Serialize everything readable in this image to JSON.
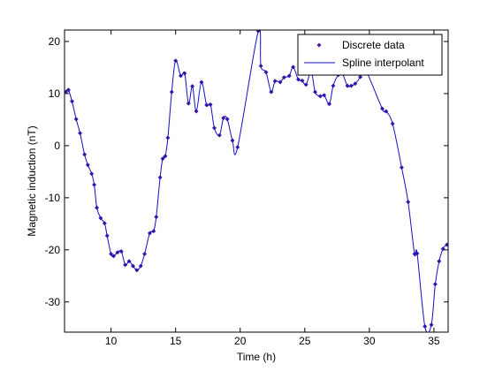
{
  "chart_data": {
    "type": "line",
    "xlabel": "Time (h)",
    "ylabel": "Magnetic induction (nT)",
    "xlim": [
      6.4,
      36.1
    ],
    "ylim": [
      -35.8,
      22.2
    ],
    "xticks": [
      10,
      15,
      20,
      25,
      30,
      35
    ],
    "yticks": [
      -30,
      -20,
      -10,
      0,
      10,
      20
    ],
    "legend": "upper right",
    "x": [
      6.5,
      6.7,
      6.98,
      7.3,
      7.6,
      7.95,
      8.2,
      8.5,
      8.7,
      8.9,
      9.2,
      9.5,
      9.7,
      10.0,
      10.2,
      10.5,
      10.8,
      11.1,
      11.4,
      11.7,
      12.0,
      12.3,
      12.6,
      13.0,
      13.3,
      13.5,
      13.8,
      14.0,
      14.2,
      14.4,
      14.7,
      15.0,
      15.4,
      15.7,
      16.0,
      16.3,
      16.6,
      17.0,
      17.4,
      17.7,
      18.0,
      18.4,
      18.7,
      19.0,
      19.4,
      19.8,
      21.4,
      21.6,
      22.0,
      22.4,
      22.7,
      23.1,
      23.4,
      23.8,
      24.1,
      24.5,
      24.8,
      25.1,
      25.5,
      25.8,
      26.2,
      26.5,
      26.9,
      27.2,
      27.6,
      27.9,
      28.3,
      28.6,
      28.9,
      29.3,
      29.6,
      31.0,
      31.3,
      31.8,
      32.5,
      33.0,
      33.5,
      33.7,
      34.3,
      34.8,
      35.1,
      35.4,
      35.7,
      36.0
    ],
    "series": [
      {
        "name": "Discrete data",
        "color": "#4b1a9a",
        "marker": true,
        "values": [
          10.3,
          10.7,
          8.5,
          5.1,
          2.4,
          -1.7,
          -3.7,
          -5.4,
          -7.5,
          -11.9,
          -13.9,
          -14.9,
          -17.3,
          -20.8,
          -21.2,
          -20.5,
          -20.3,
          -22.9,
          -22.2,
          -23.1,
          -23.9,
          -23.1,
          -20.8,
          -16.8,
          -16.4,
          -13.7,
          -6.1,
          -2.5,
          -2.0,
          1.5,
          10.3,
          16.3,
          13.4,
          13.9,
          8.1,
          11.4,
          6.6,
          12.2,
          7.8,
          7.9,
          3.4,
          2.0,
          5.3,
          5.1,
          1.0,
          -0.3,
          22.0,
          15.3,
          14.1,
          10.3,
          12.4,
          12.2,
          13.1,
          13.4,
          15.1,
          12.7,
          12.5,
          11.7,
          14.2,
          10.3,
          9.5,
          9.7,
          8.0,
          11.5,
          13.6,
          13.9,
          11.5,
          11.5,
          11.9,
          13.2,
          15.1,
          7.1,
          6.6,
          4.2,
          -4.2,
          -10.8,
          -20.8,
          -20.7,
          -34.7,
          -34.4,
          -26.6,
          -22.2,
          -19.8,
          -19.0
        ]
      },
      {
        "name": "Spline interpolant",
        "color": "#1010c8",
        "marker": false,
        "values": [
          10.3,
          10.7,
          8.5,
          5.1,
          2.4,
          -1.7,
          -3.7,
          -5.4,
          -7.5,
          -11.9,
          -13.9,
          -14.9,
          -17.3,
          -20.8,
          -21.2,
          -20.5,
          -20.3,
          -22.9,
          -22.2,
          -23.1,
          -23.9,
          -23.1,
          -20.8,
          -16.8,
          -16.4,
          -13.7,
          -6.1,
          -2.5,
          -2.0,
          1.5,
          10.3,
          16.3,
          13.4,
          13.9,
          8.1,
          11.4,
          6.6,
          12.2,
          7.8,
          7.9,
          3.4,
          2.0,
          5.3,
          5.1,
          1.0,
          -0.3,
          22.0,
          15.3,
          14.1,
          10.3,
          12.4,
          12.2,
          13.1,
          13.4,
          15.1,
          12.7,
          12.5,
          11.7,
          14.2,
          10.3,
          9.5,
          9.7,
          8.0,
          11.5,
          13.6,
          13.9,
          11.5,
          11.5,
          11.9,
          13.2,
          15.1,
          7.1,
          6.6,
          4.2,
          -4.2,
          -10.8,
          -20.8,
          -20.7,
          -34.7,
          -34.4,
          -26.6,
          -22.2,
          -19.8,
          -19.0
        ]
      }
    ]
  }
}
